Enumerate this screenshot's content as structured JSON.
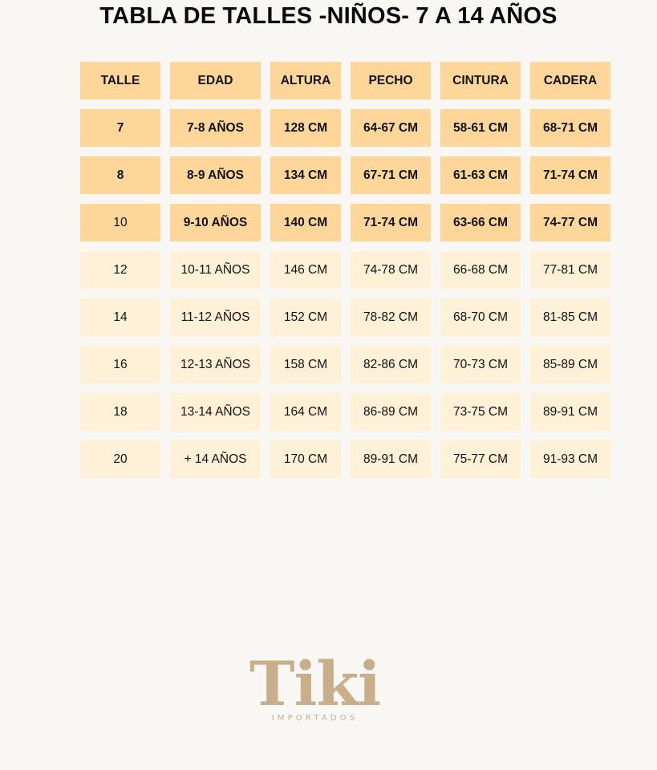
{
  "title": "TABLA DE TALLES -NIÑOS- 7 A 14 AÑOS",
  "table": {
    "headers": [
      "TALLE",
      "EDAD",
      "ALTURA",
      "PECHO",
      "CINTURA",
      "CADERA"
    ],
    "rows": [
      {
        "cells": [
          "7",
          "7-8 AÑOS",
          "128 CM",
          "64-67 CM",
          "58-61 CM",
          "68-71 CM"
        ],
        "bold": [
          true,
          true,
          true,
          true,
          true,
          true
        ],
        "shade": "strong"
      },
      {
        "cells": [
          "8",
          "8-9 AÑOS",
          "134 CM",
          "67-71 CM",
          "61-63 CM",
          "71-74 CM"
        ],
        "bold": [
          true,
          true,
          true,
          true,
          true,
          true
        ],
        "shade": "strong"
      },
      {
        "cells": [
          "10",
          "9-10 AÑOS",
          "140 CM",
          "71-74 CM",
          "63-66 CM",
          "74-77 CM"
        ],
        "bold": [
          false,
          true,
          true,
          true,
          true,
          true
        ],
        "shade": "strong"
      },
      {
        "cells": [
          "12",
          "10-11 AÑOS",
          "146 CM",
          "74-78 CM",
          "66-68 CM",
          "77-81 CM"
        ],
        "bold": [
          false,
          false,
          false,
          false,
          false,
          false
        ],
        "shade": "light"
      },
      {
        "cells": [
          "14",
          "11-12 AÑOS",
          "152 CM",
          "78-82 CM",
          "68-70 CM",
          "81-85 CM"
        ],
        "bold": [
          false,
          false,
          false,
          false,
          false,
          false
        ],
        "shade": "light"
      },
      {
        "cells": [
          "16",
          "12-13 AÑOS",
          "158 CM",
          "82-86 CM",
          "70-73 CM",
          "85-89 CM"
        ],
        "bold": [
          false,
          false,
          false,
          false,
          false,
          false
        ],
        "shade": "light"
      },
      {
        "cells": [
          "18",
          "13-14 AÑOS",
          "164 CM",
          "86-89 CM",
          "73-75 CM",
          "89-91 CM"
        ],
        "bold": [
          false,
          false,
          false,
          false,
          false,
          false
        ],
        "shade": "light"
      },
      {
        "cells": [
          "20",
          "+ 14 AÑOS",
          "170 CM",
          "89-91 CM",
          "75-77 CM",
          "91-93 CM"
        ],
        "bold": [
          false,
          false,
          false,
          false,
          false,
          false
        ],
        "shade": "light"
      }
    ]
  },
  "logo": {
    "word": "Tiki",
    "subtitle": "IMPORTADOS"
  },
  "colors": {
    "background": "#f9f7f3",
    "header_fill": "#ffd699",
    "light_fill": "#fff0d8",
    "logo": "#c9ae8c"
  }
}
